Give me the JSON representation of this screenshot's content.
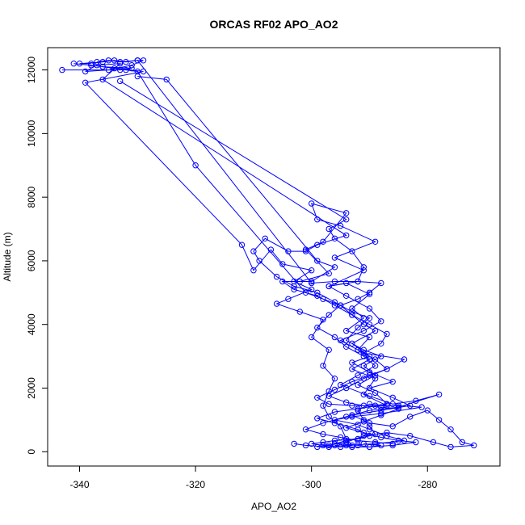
{
  "chart_data": {
    "type": "line",
    "title": "ORCAS RF02 APO_AO2",
    "xlabel": "APO_AO2",
    "ylabel": "Altitude (m)",
    "xlim": [
      -345.5,
      -267.5
    ],
    "ylim": [
      -450,
      12700
    ],
    "xticks": [
      -340,
      -320,
      -300,
      -280
    ],
    "yticks": [
      0,
      2000,
      4000,
      6000,
      8000,
      10000,
      12000
    ],
    "grid": false,
    "marker": "open-circle",
    "color": "#0000ff",
    "series": [
      {
        "points": [
          [
            -343,
            12000
          ],
          [
            -333,
            12000
          ],
          [
            -331,
            12050
          ],
          [
            -336,
            12100
          ],
          [
            -329,
            11950
          ],
          [
            -339,
            11600
          ],
          [
            -312,
            6500
          ],
          [
            -310,
            5700
          ],
          [
            -307,
            6350
          ],
          [
            -305,
            5900
          ],
          [
            -300,
            5700
          ],
          [
            -303,
            5350
          ],
          [
            -300,
            5100
          ],
          [
            -304,
            4800
          ],
          [
            -306,
            4650
          ],
          [
            -302,
            4400
          ],
          [
            -298,
            4150
          ],
          [
            -300,
            3600
          ],
          [
            -297,
            3200
          ],
          [
            -298,
            2700
          ],
          [
            -296,
            2300
          ],
          [
            -297,
            1900
          ],
          [
            -298,
            1450
          ],
          [
            -297,
            1100
          ],
          [
            -295,
            800
          ],
          [
            -294,
            400
          ],
          [
            -293,
            200
          ],
          [
            -295,
            150
          ],
          [
            -298,
            200
          ],
          [
            -300,
            250
          ],
          [
            -298,
            300
          ],
          [
            -296,
            350
          ],
          [
            -292,
            400
          ],
          [
            -289,
            550
          ],
          [
            -290,
            800
          ],
          [
            -291,
            1000
          ],
          [
            -292,
            1300
          ],
          [
            -290,
            1500
          ],
          [
            -287,
            1450
          ],
          [
            -291,
            1800
          ],
          [
            -289,
            2300
          ],
          [
            -293,
            2600
          ],
          [
            -290,
            2900
          ],
          [
            -292,
            3200
          ],
          [
            -290,
            3600
          ],
          [
            -294,
            3800
          ],
          [
            -291,
            4200
          ],
          [
            -293,
            4500
          ],
          [
            -290,
            4950
          ],
          [
            -294,
            5300
          ],
          [
            -297,
            5200
          ],
          [
            -291,
            5700
          ],
          [
            -296,
            6100
          ],
          [
            -289,
            6600
          ],
          [
            -295,
            7100
          ],
          [
            -299,
            7300
          ],
          [
            -300,
            7800
          ],
          [
            -294,
            7500
          ],
          [
            -298,
            6600
          ],
          [
            -301,
            6350
          ],
          [
            -297,
            5600
          ],
          [
            -302,
            5350
          ]
        ]
      },
      {
        "points": [
          [
            -338,
            12200
          ],
          [
            -340,
            12200
          ],
          [
            -336,
            12250
          ],
          [
            -334,
            12300
          ],
          [
            -332,
            12250
          ],
          [
            -330,
            12300
          ],
          [
            -329,
            12300
          ],
          [
            -331,
            12150
          ],
          [
            -335,
            12000
          ],
          [
            -339,
            11950
          ],
          [
            -337,
            12150
          ],
          [
            -333,
            12200
          ],
          [
            -336,
            11700
          ],
          [
            -294,
            6800
          ],
          [
            -299,
            6500
          ],
          [
            -301,
            6300
          ],
          [
            -304,
            6300
          ],
          [
            -308,
            6700
          ],
          [
            -310,
            6300
          ],
          [
            -309,
            6000
          ],
          [
            -306,
            5500
          ],
          [
            -303,
            5200
          ],
          [
            -299,
            5000
          ],
          [
            -296,
            4700
          ],
          [
            -293,
            4400
          ],
          [
            -290,
            4200
          ],
          [
            -292,
            3900
          ],
          [
            -294,
            3500
          ],
          [
            -291,
            3200
          ],
          [
            -288,
            3000
          ],
          [
            -291,
            2700
          ],
          [
            -289,
            2400
          ],
          [
            -292,
            2100
          ],
          [
            -289,
            1850
          ],
          [
            -287,
            1500
          ],
          [
            -292,
            1350
          ],
          [
            -296,
            1250
          ],
          [
            -299,
            1050
          ],
          [
            -296,
            900
          ],
          [
            -292,
            700
          ],
          [
            -290,
            500
          ],
          [
            -294,
            350
          ],
          [
            -296,
            250
          ],
          [
            -292,
            200
          ],
          [
            -290,
            150
          ],
          [
            -288,
            200
          ],
          [
            -291,
            250
          ]
        ]
      },
      {
        "points": [
          [
            -330,
            11800
          ],
          [
            -325,
            11700
          ],
          [
            -299,
            6000
          ],
          [
            -296,
            5800
          ],
          [
            -300,
            5350
          ],
          [
            -305,
            5350
          ],
          [
            -303,
            5100
          ],
          [
            -299,
            4900
          ],
          [
            -296,
            4600
          ],
          [
            -293,
            4300
          ],
          [
            -291,
            4000
          ],
          [
            -289,
            3800
          ],
          [
            -293,
            3400
          ],
          [
            -290,
            3000
          ],
          [
            -293,
            2800
          ],
          [
            -290,
            2500
          ],
          [
            -286,
            2200
          ],
          [
            -290,
            2000
          ],
          [
            -286,
            1700
          ],
          [
            -283,
            1450
          ],
          [
            -288,
            1300
          ],
          [
            -293,
            1150
          ],
          [
            -290,
            900
          ],
          [
            -286,
            800
          ],
          [
            -283,
            1100
          ],
          [
            -280,
            1300
          ],
          [
            -278,
            1000
          ],
          [
            -276,
            700
          ],
          [
            -274,
            300
          ],
          [
            -272,
            200
          ],
          [
            -276,
            150
          ],
          [
            -279,
            300
          ],
          [
            -283,
            500
          ],
          [
            -287,
            600
          ],
          [
            -291,
            500
          ],
          [
            -294,
            300
          ],
          [
            -297,
            200
          ],
          [
            -299,
            150
          ]
        ]
      },
      {
        "points": [
          [
            -341,
            12200
          ],
          [
            -338,
            12150
          ],
          [
            -336,
            12100
          ],
          [
            -334,
            12050
          ],
          [
            -332,
            12000
          ],
          [
            -330,
            11950
          ],
          [
            -320,
            9000
          ],
          [
            -301,
            5000
          ],
          [
            -298,
            4800
          ],
          [
            -295,
            4600
          ],
          [
            -293,
            4300
          ],
          [
            -290,
            4000
          ],
          [
            -287,
            3700
          ],
          [
            -288,
            3400
          ],
          [
            -291,
            3100
          ],
          [
            -284,
            2900
          ],
          [
            -287,
            2600
          ],
          [
            -290,
            2400
          ],
          [
            -293,
            2200
          ],
          [
            -296,
            1950
          ],
          [
            -299,
            1700
          ],
          [
            -297,
            1500
          ],
          [
            -293,
            1450
          ],
          [
            -289,
            1450
          ],
          [
            -285,
            1450
          ],
          [
            -281,
            1400
          ],
          [
            -288,
            1200
          ],
          [
            -293,
            1100
          ],
          [
            -296,
            1000
          ],
          [
            -292,
            850
          ],
          [
            -290,
            700
          ],
          [
            -287,
            500
          ],
          [
            -284,
            350
          ],
          [
            -289,
            250
          ],
          [
            -294,
            200
          ],
          [
            -297,
            150
          ],
          [
            -301,
            200
          ],
          [
            -303,
            250
          ]
        ]
      },
      {
        "points": [
          [
            -333,
            11650
          ],
          [
            -294,
            7300
          ],
          [
            -297,
            7000
          ],
          [
            -296,
            6700
          ],
          [
            -293,
            6300
          ],
          [
            -291,
            5800
          ],
          [
            -292,
            5350
          ],
          [
            -288,
            5300
          ],
          [
            -290,
            5000
          ],
          [
            -292,
            4800
          ],
          [
            -295,
            4600
          ],
          [
            -297,
            4300
          ],
          [
            -299,
            3900
          ],
          [
            -296,
            3600
          ],
          [
            -294,
            3300
          ],
          [
            -291,
            3000
          ],
          [
            -289,
            2700
          ],
          [
            -292,
            2400
          ],
          [
            -295,
            2100
          ],
          [
            -290,
            1750
          ],
          [
            -286,
            1500
          ],
          [
            -282,
            1600
          ],
          [
            -278,
            1800
          ],
          [
            -285,
            1400
          ],
          [
            -290,
            1300
          ],
          [
            -294,
            1100
          ],
          [
            -298,
            900
          ],
          [
            -301,
            700
          ],
          [
            -298,
            550
          ],
          [
            -295,
            450
          ],
          [
            -292,
            350
          ],
          [
            -289,
            300
          ],
          [
            -286,
            250
          ]
        ]
      },
      {
        "points": [
          [
            -337,
            12250
          ],
          [
            -335,
            12300
          ],
          [
            -333,
            12250
          ],
          [
            -330,
            12300
          ],
          [
            -300,
            5300
          ],
          [
            -296,
            5350
          ],
          [
            -292,
            5350
          ],
          [
            -297,
            5200
          ],
          [
            -294,
            4900
          ],
          [
            -290,
            4500
          ],
          [
            -288,
            4100
          ],
          [
            -291,
            3800
          ],
          [
            -295,
            3500
          ],
          [
            -292,
            3200
          ],
          [
            -289,
            2900
          ],
          [
            -287,
            2600
          ],
          [
            -291,
            2300
          ],
          [
            -294,
            2000
          ],
          [
            -297,
            1750
          ],
          [
            -294,
            1550
          ],
          [
            -291,
            1450
          ],
          [
            -288,
            1400
          ],
          [
            -285,
            1350
          ],
          [
            -288,
            1150
          ],
          [
            -291,
            950
          ],
          [
            -294,
            750
          ],
          [
            -291,
            600
          ],
          [
            -288,
            450
          ],
          [
            -285,
            350
          ],
          [
            -282,
            300
          ],
          [
            -286,
            200
          ],
          [
            -290,
            150
          ],
          [
            -293,
            150
          ],
          [
            -296,
            200
          ]
        ]
      }
    ]
  }
}
